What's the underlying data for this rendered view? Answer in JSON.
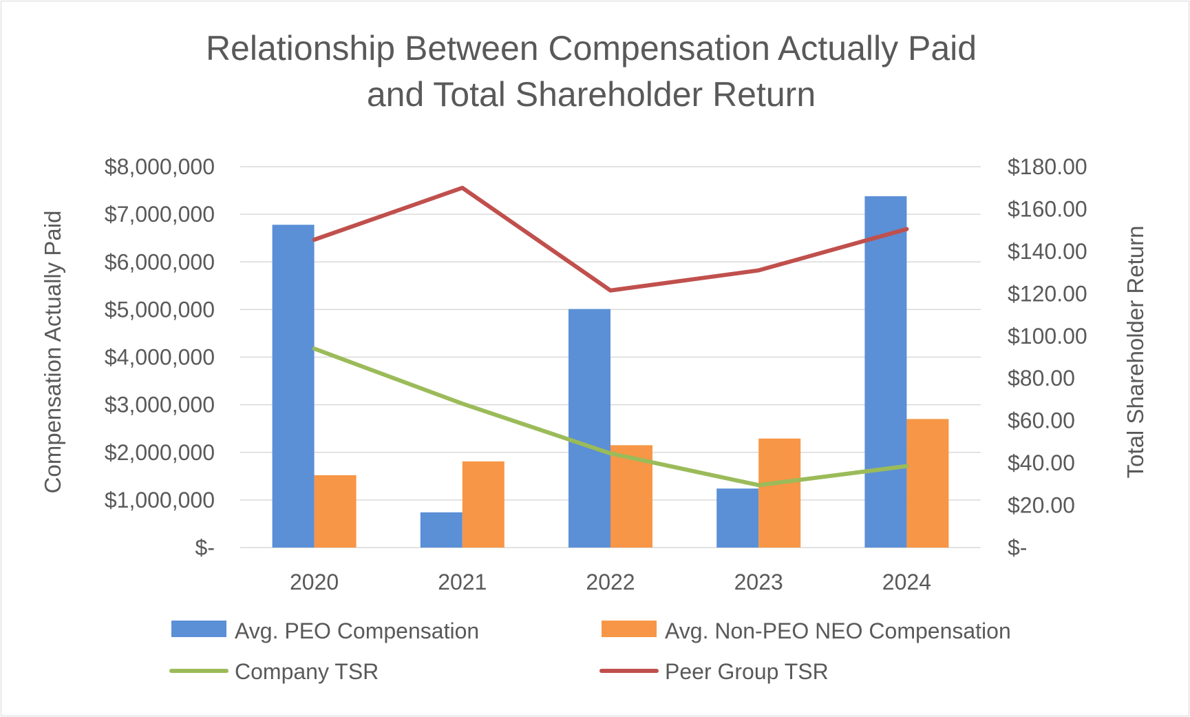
{
  "chart_data": {
    "type": "bar",
    "title_lines": [
      "Relationship Between Compensation Actually Paid",
      "and Total Shareholder Return"
    ],
    "categories": [
      "2020",
      "2021",
      "2022",
      "2023",
      "2024"
    ],
    "left_axis": {
      "label": "Compensation Actually Paid",
      "range": [
        0,
        8000000
      ],
      "tick_values": [
        0,
        1000000,
        2000000,
        3000000,
        4000000,
        5000000,
        6000000,
        7000000,
        8000000
      ],
      "tick_labels": [
        "$-",
        "$1,000,000",
        "$2,000,000",
        "$3,000,000",
        "$4,000,000",
        "$5,000,000",
        "$6,000,000",
        "$7,000,000",
        "$8,000,000"
      ]
    },
    "right_axis": {
      "label": "Total Shareholder Return",
      "range": [
        0,
        180
      ],
      "tick_values": [
        0,
        20,
        40,
        60,
        80,
        100,
        120,
        140,
        160,
        180
      ],
      "tick_labels": [
        "$-",
        "$20.00",
        "$40.00",
        "$60.00",
        "$80.00",
        "$100.00",
        "$120.00",
        "$140.00",
        "$160.00",
        "$180.00"
      ]
    },
    "grid": true,
    "legend_position": "bottom",
    "bar_series": [
      {
        "name": "Avg. PEO Compensation",
        "color": "#5b8fd6",
        "axis": "left",
        "values": [
          6780000,
          740000,
          5010000,
          1240000,
          7380000
        ]
      },
      {
        "name": "Avg. Non-PEO NEO Compensation",
        "color": "#f79646",
        "axis": "left",
        "values": [
          1520000,
          1810000,
          2150000,
          2290000,
          2700000
        ]
      }
    ],
    "line_series": [
      {
        "name": "Company TSR",
        "color": "#9bbb59",
        "axis": "right",
        "values": [
          94,
          68,
          44.5,
          29.5,
          38.5
        ]
      },
      {
        "name": "Peer Group TSR",
        "color": "#c0504d",
        "axis": "right",
        "values": [
          145.5,
          170,
          121.5,
          131,
          150.5
        ]
      }
    ],
    "legend": [
      {
        "name": "Avg. PEO Compensation",
        "kind": "bar",
        "color": "#5b8fd6"
      },
      {
        "name": "Avg. Non-PEO NEO Compensation",
        "kind": "bar",
        "color": "#f79646"
      },
      {
        "name": "Company TSR",
        "kind": "line",
        "color": "#9bbb59"
      },
      {
        "name": "Peer Group TSR",
        "kind": "line",
        "color": "#c0504d"
      }
    ]
  }
}
